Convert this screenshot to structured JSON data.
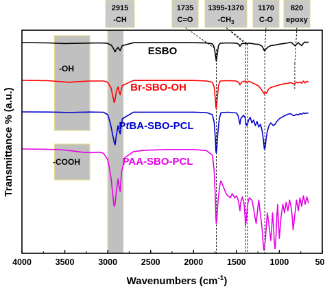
{
  "chart_data": {
    "type": "line",
    "xlabel": "Wavenumbers (cm",
    "xlabel_sup": "-1",
    "xlabel_tail": ")",
    "ylabel": "Transmittance % (a.u.)",
    "xlim": [
      4000,
      500
    ],
    "x_ticks": [
      "4000",
      "3500",
      "3000",
      "2500",
      "2000",
      "1500",
      "1000",
      "500"
    ],
    "x_tick_values": [
      4000,
      3500,
      3000,
      2500,
      2000,
      1500,
      1000,
      500
    ],
    "grid": false,
    "shaded_regions": [
      {
        "label": "-OH",
        "x_range": [
          3620,
          3210
        ],
        "color": "#c0c0c0",
        "border": "#e0d98a"
      },
      {
        "label": "-COOH",
        "x_range": [
          3620,
          3210
        ],
        "color": "#c0c0c0",
        "border": "#e0d98a"
      },
      {
        "label": "",
        "x_range": [
          3000,
          2820
        ],
        "color": "#c0c0c0",
        "border": "#e0d98a"
      }
    ],
    "annotations": [
      {
        "line1": "2915",
        "line2": "-CH",
        "x": 2915
      },
      {
        "line1": "1735",
        "line2": "C=O",
        "x": 1735
      },
      {
        "line1": "1395-1370",
        "line2": "-CH",
        "line2_sub": "3",
        "x": 1385
      },
      {
        "line1": "1170",
        "line2": "C-O",
        "x": 1170
      },
      {
        "line1": "820",
        "line2": "epoxy",
        "x": 820
      }
    ],
    "series": [
      {
        "name": "ESBO",
        "label_prefix": "ESBO",
        "label_italic": "",
        "label_suffix": "",
        "color": "#000000",
        "x": [
          4000,
          3700,
          3500,
          3300,
          3100,
          3010,
          2960,
          2940,
          2925,
          2915,
          2900,
          2880,
          2870,
          2855,
          2830,
          2700,
          2300,
          2000,
          1850,
          1780,
          1760,
          1745,
          1735,
          1725,
          1710,
          1690,
          1600,
          1500,
          1470,
          1460,
          1440,
          1400,
          1380,
          1360,
          1320,
          1280,
          1240,
          1200,
          1180,
          1170,
          1160,
          1130,
          1100,
          1050,
          1000,
          950,
          900,
          870,
          850,
          830,
          820,
          800,
          780,
          760,
          740,
          720,
          700,
          680,
          660
        ],
        "y": [
          100,
          99.5,
          98.5,
          99,
          99.5,
          99,
          96,
          92,
          88,
          85,
          89,
          92,
          90,
          87,
          95,
          99.8,
          99.8,
          99.8,
          99.3,
          98,
          93,
          80,
          70,
          80,
          95,
          99,
          99.5,
          99,
          97,
          94,
          98,
          99,
          98,
          99,
          98.5,
          97.5,
          97,
          94,
          88,
          86,
          89,
          93,
          95,
          96,
          97.5,
          98.5,
          99.5,
          100.5,
          99,
          96.5,
          95,
          97,
          100,
          97,
          95,
          99,
          101,
          100,
          101
        ]
      },
      {
        "name": "Br-SBO-OH",
        "label_prefix": "Br-SBO-OH",
        "label_italic": "",
        "label_suffix": "",
        "color": "#ff0000",
        "x": [
          4000,
          3700,
          3550,
          3450,
          3350,
          3200,
          3050,
          3000,
          2960,
          2945,
          2935,
          2925,
          2915,
          2900,
          2880,
          2870,
          2855,
          2830,
          2700,
          2300,
          2000,
          1850,
          1780,
          1760,
          1745,
          1740,
          1735,
          1725,
          1710,
          1690,
          1600,
          1500,
          1470,
          1460,
          1440,
          1400,
          1380,
          1360,
          1320,
          1280,
          1240,
          1210,
          1190,
          1175,
          1165,
          1150,
          1130,
          1100,
          1050,
          1000,
          950,
          900,
          870,
          850,
          830,
          800,
          780,
          760,
          740,
          720,
          700,
          680,
          660
        ],
        "y": [
          100,
          99.5,
          98,
          97,
          98,
          99,
          99,
          97,
          88,
          78,
          72,
          66,
          70,
          83,
          90,
          84,
          78,
          92,
          99.8,
          99.8,
          99.8,
          99,
          97,
          90,
          70,
          60,
          56,
          70,
          92,
          99,
          99.5,
          99,
          96,
          93,
          97,
          99,
          97,
          98.5,
          96.5,
          94,
          91,
          86,
          82,
          79,
          82,
          80,
          86,
          89,
          91,
          93,
          94.5,
          95.5,
          96.5,
          95.5,
          94,
          97,
          96,
          97.5,
          95.5,
          99,
          96,
          98.5,
          97.5
        ]
      },
      {
        "name": "PtBA-SBO-PCL",
        "label_prefix": "P",
        "label_italic": "t",
        "label_suffix": "BA-SBO-PCL",
        "color": "#0000cd",
        "x": [
          4000,
          3700,
          3550,
          3450,
          3350,
          3200,
          3050,
          3000,
          2980,
          2960,
          2945,
          2935,
          2925,
          2915,
          2900,
          2880,
          2870,
          2855,
          2830,
          2700,
          2300,
          2000,
          1850,
          1780,
          1760,
          1745,
          1740,
          1735,
          1730,
          1720,
          1700,
          1680,
          1600,
          1500,
          1480,
          1470,
          1460,
          1450,
          1420,
          1400,
          1390,
          1380,
          1370,
          1360,
          1340,
          1320,
          1300,
          1280,
          1260,
          1240,
          1220,
          1200,
          1185,
          1175,
          1165,
          1155,
          1140,
          1120,
          1100,
          1070,
          1050,
          1030,
          1000,
          960,
          930,
          900,
          870,
          850,
          830,
          800,
          780,
          760,
          740,
          720,
          700,
          680,
          660
        ],
        "y": [
          100,
          99.8,
          99.5,
          99,
          99.5,
          99.8,
          99.5,
          96,
          88,
          78,
          68,
          62,
          56,
          52,
          66,
          80,
          74,
          68,
          90,
          99.6,
          99.6,
          99.6,
          99,
          96,
          85,
          60,
          44,
          40,
          45,
          65,
          90,
          99,
          99.5,
          98.5,
          94,
          88,
          82,
          90,
          95,
          92,
          84,
          80,
          82,
          88,
          92,
          84,
          88,
          80,
          86,
          78,
          82,
          72,
          58,
          46,
          48,
          60,
          72,
          80,
          84,
          80,
          82,
          86,
          90,
          93,
          95,
          96.5,
          97.5,
          95.5,
          94.5,
          96.5,
          95.5,
          97.5,
          96.5,
          98.5,
          97.5,
          98.5,
          98
        ]
      },
      {
        "name": "PAA-SBO-PCL",
        "label_prefix": "PAA-SBO-PCL",
        "label_italic": "",
        "label_suffix": "",
        "color": "#e600e6",
        "x": [
          4000,
          3800,
          3600,
          3500,
          3400,
          3300,
          3200,
          3100,
          3050,
          3000,
          2980,
          2960,
          2945,
          2935,
          2925,
          2915,
          2900,
          2880,
          2870,
          2855,
          2840,
          2800,
          2700,
          2600,
          2500,
          2300,
          2000,
          1850,
          1780,
          1760,
          1745,
          1740,
          1735,
          1728,
          1720,
          1710,
          1700,
          1690,
          1680,
          1660,
          1640,
          1620,
          1600,
          1570,
          1550,
          1520,
          1500,
          1480,
          1470,
          1460,
          1450,
          1430,
          1410,
          1400,
          1395,
          1385,
          1375,
          1365,
          1350,
          1320,
          1300,
          1285,
          1270,
          1250,
          1240,
          1220,
          1200,
          1190,
          1180,
          1170,
          1160,
          1150,
          1140,
          1120,
          1100,
          1090,
          1080,
          1070,
          1060,
          1050,
          1040,
          1030,
          1020,
          1010,
          1000,
          980,
          960,
          940,
          920,
          900,
          880,
          860,
          850,
          840,
          820,
          800,
          780,
          760,
          740,
          720,
          700,
          680,
          660
        ],
        "y": [
          100,
          99.8,
          99.5,
          99,
          98,
          97,
          96.5,
          97,
          96,
          90,
          82,
          72,
          60,
          52,
          46,
          48,
          60,
          72,
          66,
          60,
          78,
          92,
          97.5,
          98.5,
          99,
          99.5,
          99.5,
          98.5,
          94,
          80,
          52,
          36,
          30,
          34,
          45,
          55,
          62,
          68,
          70,
          66,
          62,
          58,
          56,
          54,
          58,
          54,
          56,
          52,
          48,
          42,
          50,
          55,
          48,
          36,
          28,
          33,
          44,
          50,
          54,
          52,
          44,
          36,
          30,
          45,
          52,
          38,
          24,
          12,
          5,
          10,
          18,
          30,
          40,
          28,
          14,
          24,
          40,
          30,
          14,
          6,
          16,
          36,
          48,
          30,
          16,
          36,
          48,
          40,
          50,
          42,
          52,
          44,
          36,
          24,
          38,
          52,
          42,
          54,
          46,
          56,
          48,
          55,
          49
        ]
      }
    ]
  }
}
